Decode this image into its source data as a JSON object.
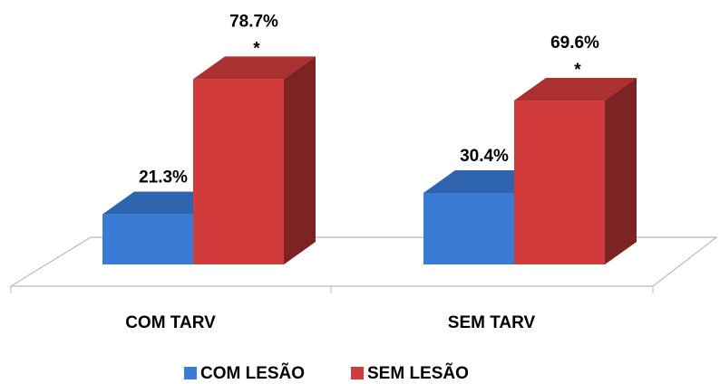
{
  "chart_data": {
    "type": "bar3d",
    "categories": [
      "COM TARV",
      "SEM TARV"
    ],
    "series": [
      {
        "name": "COM LESÃO",
        "color": "#3a7bd5",
        "values": [
          21.3,
          30.4
        ],
        "value_labels": [
          "21.3%",
          "30.4%"
        ]
      },
      {
        "name": "SEM LESÃO",
        "color": "#d13b3b",
        "values": [
          78.7,
          69.6
        ],
        "value_labels": [
          "78.7%",
          "69.6%"
        ],
        "annotations": [
          "*",
          "*"
        ]
      }
    ],
    "legend": "bottom"
  }
}
